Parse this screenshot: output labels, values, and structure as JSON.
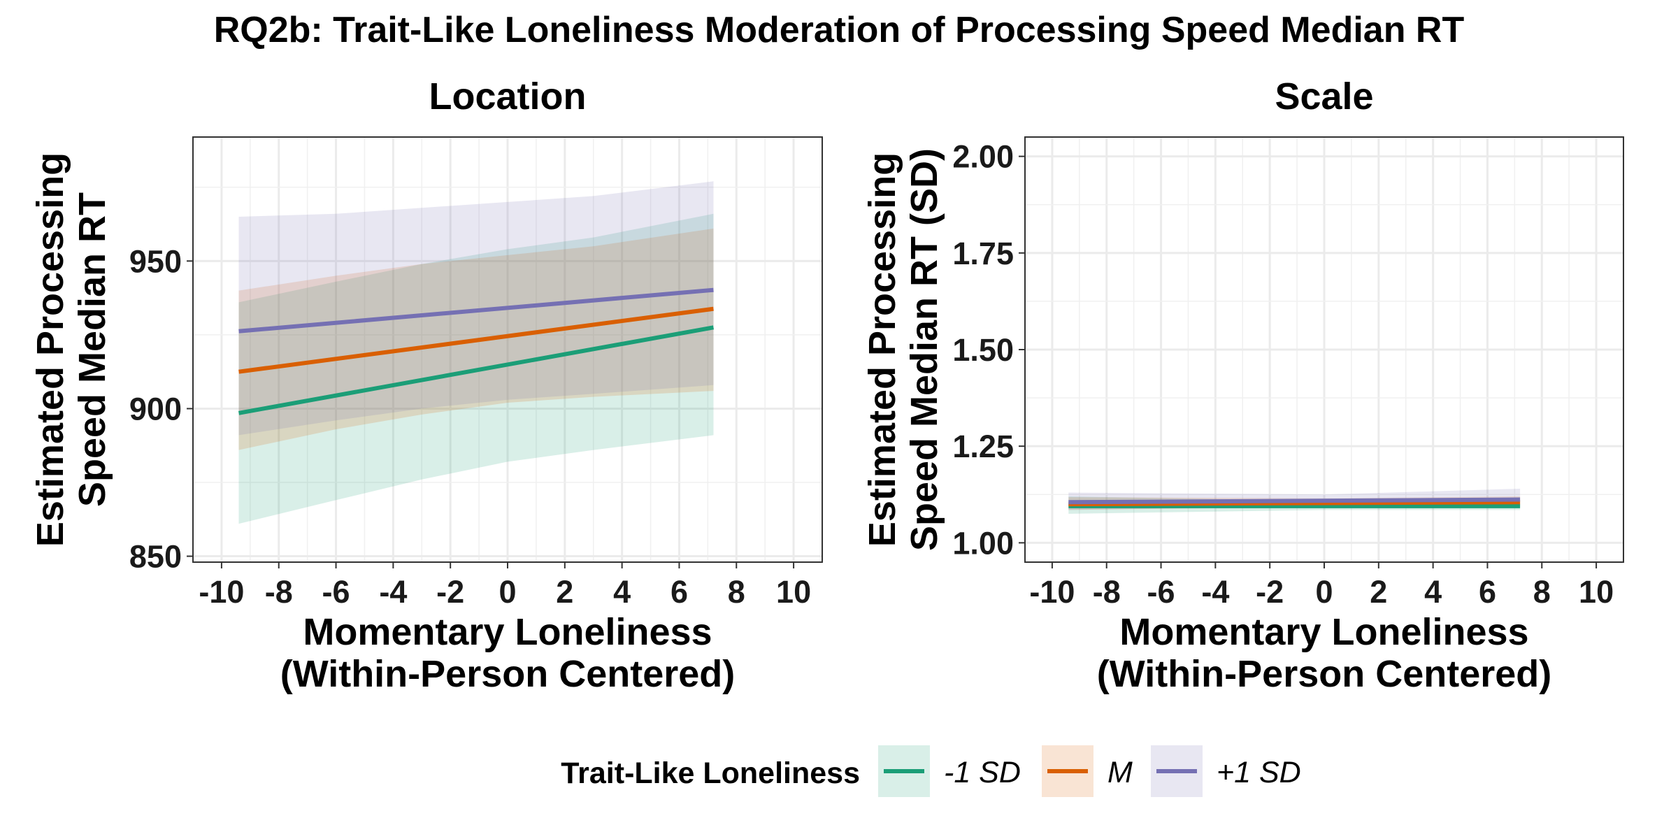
{
  "title": "RQ2b: Trait-Like Loneliness Moderation of Processing Speed Median RT",
  "colors": {
    "-1 SD": "#1b9e77",
    "M": "#d95f02",
    "+1 SD": "#7570b3"
  },
  "legend": {
    "title": "Trait-Like Loneliness",
    "position": "bottom",
    "entries": [
      "-1 SD",
      "M",
      "+1 SD"
    ]
  },
  "chart_data": [
    {
      "type": "line",
      "panel_title": "Location",
      "xlabel_lines": [
        "Momentary Loneliness",
        "(Within-Person Centered)"
      ],
      "ylabel_lines": [
        "Estimated Processing",
        "Speed Median RT"
      ],
      "xlim": [
        -11,
        11
      ],
      "ylim": [
        848,
        992
      ],
      "x_ticks": [
        -10,
        -8,
        -6,
        -4,
        -2,
        0,
        2,
        4,
        6,
        8,
        10
      ],
      "y_ticks": [
        850,
        900,
        950
      ],
      "grid": true,
      "series": [
        {
          "name": "-1 SD",
          "x": [
            -9.4,
            7.2
          ],
          "y": [
            898.5,
            927.5
          ],
          "band_x": [
            -9.4,
            -6,
            -3,
            0,
            3,
            7.2
          ],
          "band_lower": [
            861,
            869,
            876,
            882,
            886,
            891
          ],
          "band_upper": [
            936,
            943,
            949,
            954,
            958,
            966
          ]
        },
        {
          "name": "M",
          "x": [
            -9.4,
            7.2
          ],
          "y": [
            912.5,
            933.8
          ],
          "band_x": [
            -9.4,
            -6,
            -3,
            0,
            3,
            7.2
          ],
          "band_lower": [
            886,
            893,
            898,
            902,
            904,
            906
          ],
          "band_upper": [
            940,
            945,
            949,
            952,
            955,
            961
          ]
        },
        {
          "name": "+1 SD",
          "x": [
            -9.4,
            7.2
          ],
          "y": [
            926.2,
            940.2
          ],
          "band_x": [
            -9.4,
            -6,
            -3,
            0,
            3,
            7.2
          ],
          "band_lower": [
            891,
            896,
            900,
            903,
            905,
            908
          ],
          "band_upper": [
            965,
            966,
            968,
            970,
            972,
            977
          ]
        }
      ]
    },
    {
      "type": "line",
      "panel_title": "Scale",
      "xlabel_lines": [
        "Momentary Loneliness",
        "(Within-Person Centered)"
      ],
      "ylabel_lines": [
        "Estimated Processing",
        "Speed Median RT (SD)"
      ],
      "xlim": [
        -11,
        11
      ],
      "ylim": [
        0.95,
        2.05
      ],
      "x_ticks": [
        -10,
        -8,
        -6,
        -4,
        -2,
        0,
        2,
        4,
        6,
        8,
        10
      ],
      "y_ticks": [
        1.0,
        1.25,
        1.5,
        1.75,
        2.0
      ],
      "y_tick_labels": [
        "1.00",
        "1.25",
        "1.50",
        "1.75",
        "2.00"
      ],
      "grid": true,
      "series": [
        {
          "name": "-1 SD",
          "x": [
            -9.4,
            7.2
          ],
          "y": [
            1.095,
            1.095
          ],
          "band_x": [
            -9.4,
            0,
            7.2
          ],
          "band_lower": [
            1.075,
            1.085,
            1.085
          ],
          "band_upper": [
            1.12,
            1.108,
            1.11
          ]
        },
        {
          "name": "M",
          "x": [
            -9.4,
            7.2
          ],
          "y": [
            1.1,
            1.105
          ],
          "band_x": [
            -9.4,
            0,
            7.2
          ],
          "band_lower": [
            1.085,
            1.093,
            1.093
          ],
          "band_upper": [
            1.118,
            1.115,
            1.12
          ]
        },
        {
          "name": "+1 SD",
          "x": [
            -9.4,
            7.2
          ],
          "y": [
            1.105,
            1.112
          ],
          "band_x": [
            -9.4,
            0,
            7.2
          ],
          "band_lower": [
            1.085,
            1.095,
            1.095
          ],
          "band_upper": [
            1.13,
            1.125,
            1.14
          ]
        }
      ]
    }
  ]
}
